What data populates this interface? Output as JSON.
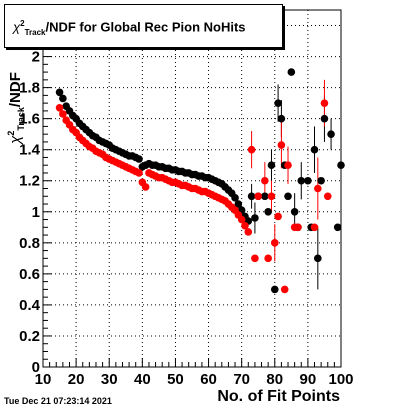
{
  "title": {
    "symbol": "χ",
    "sup": "2",
    "sub": "Track",
    "rest": "/NDF for Global Rec Pion NoHits"
  },
  "timestamp": "Tue Dec 21 07:23:14 2021",
  "chart_data": {
    "type": "scatter",
    "title": "χ²Track/NDF for Global Rec Pion NoHits",
    "xlabel": "No. of Fit Points",
    "ylabel": "χ²Track/NDF",
    "xlim": [
      10,
      100
    ],
    "ylim": [
      0,
      2.3
    ],
    "grid": true,
    "x_ticks": [
      "10",
      "20",
      "30",
      "40",
      "50",
      "60",
      "70",
      "80",
      "90",
      "100"
    ],
    "y_ticks": [
      "0",
      "0.2",
      "0.4",
      "0.6",
      "0.8",
      "1",
      "1.2",
      "1.4",
      "1.6",
      "1.8",
      "2",
      "2.2"
    ],
    "series": [
      {
        "color": "#000000",
        "points": [
          [
            15,
            1.77
          ],
          [
            16,
            1.73
          ],
          [
            17,
            1.68
          ],
          [
            18,
            1.65
          ],
          [
            19,
            1.62
          ],
          [
            20,
            1.6
          ],
          [
            21,
            1.57
          ],
          [
            22,
            1.55
          ],
          [
            23,
            1.53
          ],
          [
            24,
            1.51
          ],
          [
            25,
            1.49
          ],
          [
            26,
            1.48
          ],
          [
            27,
            1.46
          ],
          [
            28,
            1.45
          ],
          [
            29,
            1.44
          ],
          [
            30,
            1.43
          ],
          [
            31,
            1.41
          ],
          [
            32,
            1.4
          ],
          [
            33,
            1.39
          ],
          [
            34,
            1.38
          ],
          [
            35,
            1.37
          ],
          [
            36,
            1.36
          ],
          [
            37,
            1.36
          ],
          [
            38,
            1.35
          ],
          [
            39,
            1.34
          ],
          [
            40,
            1.29
          ],
          [
            41,
            1.3
          ],
          [
            42,
            1.31
          ],
          [
            43,
            1.3
          ],
          [
            44,
            1.3
          ],
          [
            45,
            1.29
          ],
          [
            46,
            1.29
          ],
          [
            47,
            1.28
          ],
          [
            48,
            1.28
          ],
          [
            49,
            1.27
          ],
          [
            50,
            1.27
          ],
          [
            51,
            1.26
          ],
          [
            52,
            1.26
          ],
          [
            53,
            1.25
          ],
          [
            54,
            1.25
          ],
          [
            55,
            1.24
          ],
          [
            56,
            1.24
          ],
          [
            57,
            1.23
          ],
          [
            58,
            1.23
          ],
          [
            59,
            1.22
          ],
          [
            60,
            1.22
          ],
          [
            61,
            1.21
          ],
          [
            62,
            1.2
          ],
          [
            63,
            1.19
          ],
          [
            64,
            1.18
          ],
          [
            65,
            1.16
          ],
          [
            66,
            1.14
          ],
          [
            67,
            1.12
          ],
          [
            68,
            1.09
          ],
          [
            69,
            1.05
          ],
          [
            70,
            1.01
          ],
          [
            71,
            0.97
          ],
          [
            72,
            0.94
          ],
          [
            73,
            1.1
          ],
          [
            74,
            0.96
          ],
          [
            75,
            1.1
          ],
          [
            76,
            2.1
          ],
          [
            77,
            1.1
          ],
          [
            78,
            1.0
          ],
          [
            79,
            1.3
          ],
          [
            80,
            0.5
          ],
          [
            81,
            1.7
          ],
          [
            82,
            1.6
          ],
          [
            83,
            1.3
          ],
          [
            84,
            1.1
          ],
          [
            85,
            1.9
          ],
          [
            86,
            1.0
          ],
          [
            87,
            0.9
          ],
          [
            88,
            1.2
          ],
          [
            90,
            1.2
          ],
          [
            91,
            0.9
          ],
          [
            92,
            1.4
          ],
          [
            93,
            0.7
          ],
          [
            94,
            1.2
          ],
          [
            95,
            1.6
          ],
          [
            97,
            1.5
          ],
          [
            99,
            0.9
          ],
          [
            100,
            1.3
          ]
        ],
        "errors": [
          [
            73,
            1.1,
            0.08
          ],
          [
            74,
            0.96,
            0.1
          ],
          [
            79,
            1.3,
            0.1
          ],
          [
            81,
            1.7,
            0.12
          ],
          [
            82,
            1.6,
            0.12
          ],
          [
            86,
            1.0,
            0.12
          ],
          [
            88,
            1.2,
            0.12
          ],
          [
            92,
            1.4,
            0.15
          ],
          [
            93,
            0.7,
            0.2
          ],
          [
            95,
            1.6,
            0.15
          ],
          [
            97,
            1.5,
            0.1
          ],
          [
            100,
            1.3,
            0.08
          ]
        ]
      },
      {
        "color": "#ff0000",
        "points": [
          [
            15,
            1.67
          ],
          [
            16,
            1.63
          ],
          [
            17,
            1.59
          ],
          [
            18,
            1.56
          ],
          [
            19,
            1.53
          ],
          [
            20,
            1.51
          ],
          [
            21,
            1.48
          ],
          [
            22,
            1.46
          ],
          [
            23,
            1.44
          ],
          [
            24,
            1.42
          ],
          [
            25,
            1.41
          ],
          [
            26,
            1.39
          ],
          [
            27,
            1.38
          ],
          [
            28,
            1.37
          ],
          [
            29,
            1.35
          ],
          [
            30,
            1.34
          ],
          [
            31,
            1.33
          ],
          [
            32,
            1.32
          ],
          [
            33,
            1.31
          ],
          [
            34,
            1.3
          ],
          [
            35,
            1.29
          ],
          [
            36,
            1.28
          ],
          [
            37,
            1.27
          ],
          [
            38,
            1.26
          ],
          [
            39,
            1.25
          ],
          [
            40,
            1.19
          ],
          [
            41,
            1.16
          ],
          [
            42,
            1.25
          ],
          [
            43,
            1.24
          ],
          [
            44,
            1.23
          ],
          [
            45,
            1.22
          ],
          [
            46,
            1.22
          ],
          [
            47,
            1.21
          ],
          [
            48,
            1.2
          ],
          [
            49,
            1.19
          ],
          [
            50,
            1.19
          ],
          [
            51,
            1.18
          ],
          [
            52,
            1.17
          ],
          [
            53,
            1.17
          ],
          [
            54,
            1.16
          ],
          [
            55,
            1.15
          ],
          [
            56,
            1.15
          ],
          [
            57,
            1.14
          ],
          [
            58,
            1.13
          ],
          [
            59,
            1.13
          ],
          [
            60,
            1.12
          ],
          [
            61,
            1.11
          ],
          [
            62,
            1.1
          ],
          [
            63,
            1.09
          ],
          [
            64,
            1.08
          ],
          [
            65,
            1.07
          ],
          [
            66,
            1.05
          ],
          [
            67,
            1.03
          ],
          [
            68,
            1.01
          ],
          [
            69,
            0.98
          ],
          [
            70,
            0.95
          ],
          [
            71,
            0.91
          ],
          [
            72,
            0.87
          ],
          [
            73,
            1.4
          ],
          [
            74,
            0.7
          ],
          [
            75,
            1.1
          ],
          [
            77,
            1.2
          ],
          [
            78,
            0.7
          ],
          [
            79,
            1.1
          ],
          [
            80,
            0.8
          ],
          [
            81,
            0.97
          ],
          [
            82,
            1.43
          ],
          [
            83,
            0.5
          ],
          [
            84,
            1.3
          ],
          [
            86,
            0.9
          ],
          [
            87,
            0.9
          ],
          [
            92,
            0.9
          ],
          [
            93,
            1.15
          ],
          [
            95,
            1.7
          ],
          [
            96,
            1.1
          ]
        ],
        "errors": [
          [
            73,
            1.4,
            0.12
          ],
          [
            77,
            1.2,
            0.12
          ],
          [
            79,
            1.1,
            0.1
          ],
          [
            80,
            0.8,
            0.12
          ],
          [
            82,
            1.43,
            0.15
          ],
          [
            84,
            1.3,
            0.12
          ],
          [
            93,
            1.15,
            0.2
          ],
          [
            95,
            1.7,
            0.15
          ]
        ]
      }
    ]
  }
}
